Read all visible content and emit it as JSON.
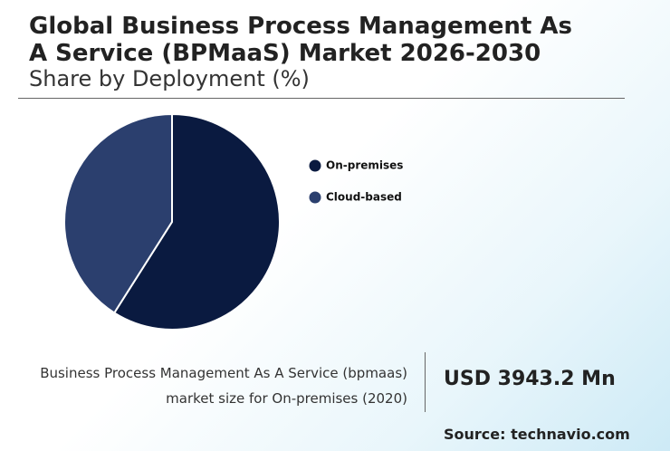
{
  "chart_data": {
    "type": "pie",
    "title": "Global Business Process Management As A Service (BPMaaS) Market 2026-2030",
    "subtitle": "Share by Deployment (%)",
    "categories": [
      "On-premises",
      "Cloud-based"
    ],
    "values": [
      59,
      41
    ],
    "colors": [
      "#0a1a40",
      "#2b3f6e"
    ]
  },
  "highlight": {
    "description": "Business Process Management As A Service (bpmaas) market size for On-premises (2020)",
    "value": "USD 3943.2 Mn"
  },
  "source": "Source: technavio.com"
}
